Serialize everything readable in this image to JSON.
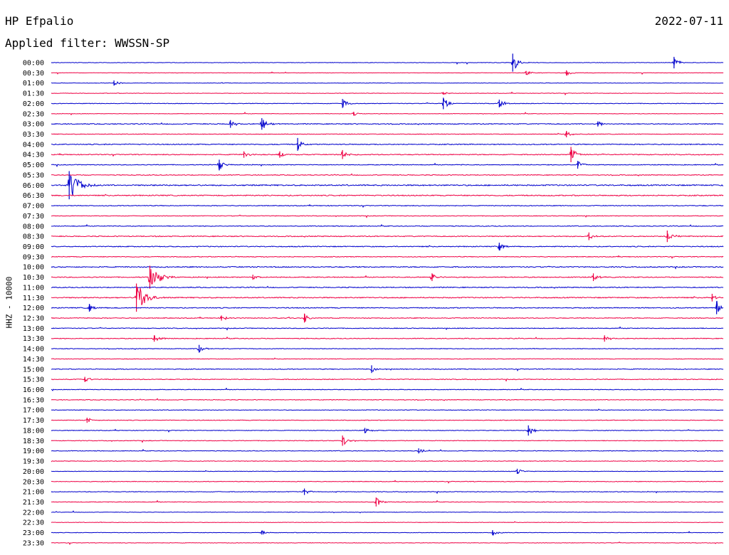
{
  "header": {
    "station": "HP Efpalio",
    "filter": "Applied filter: WWSSN-SP",
    "date": "2022-07-11"
  },
  "colors": {
    "blue": "#0000cc",
    "red": "#ee0044"
  },
  "chart_data": {
    "type": "line",
    "title": "HP Efpalio",
    "ylabel": "HHZ - 10000",
    "grid": false,
    "trace_labels": [
      "00:00",
      "00:30",
      "01:00",
      "01:30",
      "02:00",
      "02:30",
      "03:00",
      "03:30",
      "04:00",
      "04:30",
      "05:00",
      "05:30",
      "06:00",
      "06:30",
      "07:00",
      "07:30",
      "08:00",
      "08:30",
      "09:00",
      "09:30",
      "10:00",
      "10:30",
      "11:00",
      "11:30",
      "12:00",
      "12:30",
      "13:00",
      "13:30",
      "14:00",
      "14:30",
      "15:00",
      "15:30",
      "16:00",
      "16:30",
      "17:00",
      "17:30",
      "18:00",
      "18:30",
      "19:00",
      "19:30",
      "20:00",
      "20:30",
      "21:00",
      "21:30",
      "22:00",
      "22:30",
      "23:00",
      "23:30"
    ],
    "trace_colors": [
      "blue",
      "red",
      "blue",
      "red",
      "blue",
      "red",
      "blue",
      "red",
      "blue",
      "red",
      "blue",
      "red",
      "blue",
      "red",
      "blue",
      "red",
      "blue",
      "red",
      "blue",
      "red",
      "blue",
      "red",
      "blue",
      "red",
      "blue",
      "red",
      "blue",
      "red",
      "blue",
      "red",
      "blue",
      "red",
      "blue",
      "red",
      "blue",
      "red",
      "blue",
      "red",
      "blue",
      "red",
      "blue",
      "red",
      "blue",
      "red",
      "blue",
      "red",
      "blue",
      "red"
    ],
    "noise_level": [
      0.3,
      0.3,
      0.3,
      0.3,
      0.4,
      0.3,
      0.6,
      0.4,
      0.6,
      0.6,
      0.5,
      0.5,
      0.8,
      0.7,
      0.5,
      0.4,
      0.5,
      0.6,
      0.6,
      0.5,
      0.7,
      0.6,
      0.6,
      0.7,
      0.6,
      0.5,
      0.5,
      0.5,
      0.4,
      0.4,
      0.5,
      0.5,
      0.4,
      0.4,
      0.4,
      0.4,
      0.4,
      0.4,
      0.4,
      0.4,
      0.3,
      0.4,
      0.4,
      0.4,
      0.3,
      0.3,
      0.3,
      0.3
    ],
    "events": [
      {
        "trace": "00:00",
        "minute": 20.6,
        "amp": 14
      },
      {
        "trace": "00:00",
        "minute": 27.8,
        "amp": 9
      },
      {
        "trace": "00:30",
        "minute": 21.2,
        "amp": 3
      },
      {
        "trace": "00:30",
        "minute": 23.0,
        "amp": 4
      },
      {
        "trace": "01:00",
        "minute": 2.8,
        "amp": 4
      },
      {
        "trace": "01:30",
        "minute": 17.5,
        "amp": 2
      },
      {
        "trace": "02:00",
        "minute": 13.0,
        "amp": 7
      },
      {
        "trace": "02:00",
        "minute": 17.5,
        "amp": 9
      },
      {
        "trace": "02:00",
        "minute": 20.0,
        "amp": 6
      },
      {
        "trace": "02:30",
        "minute": 13.5,
        "amp": 3
      },
      {
        "trace": "03:00",
        "minute": 8.0,
        "amp": 6
      },
      {
        "trace": "03:00",
        "minute": 9.4,
        "amp": 9
      },
      {
        "trace": "03:00",
        "minute": 24.4,
        "amp": 4
      },
      {
        "trace": "03:30",
        "minute": 23.0,
        "amp": 5
      },
      {
        "trace": "04:00",
        "minute": 11.0,
        "amp": 10
      },
      {
        "trace": "04:30",
        "minute": 8.6,
        "amp": 5
      },
      {
        "trace": "04:30",
        "minute": 10.2,
        "amp": 5
      },
      {
        "trace": "04:30",
        "minute": 13.0,
        "amp": 7
      },
      {
        "trace": "04:30",
        "minute": 23.2,
        "amp": 12
      },
      {
        "trace": "05:00",
        "minute": 7.5,
        "amp": 8
      },
      {
        "trace": "05:00",
        "minute": 23.5,
        "amp": 6
      },
      {
        "trace": "06:00",
        "minute": 0.8,
        "amp": 22
      },
      {
        "trace": "08:30",
        "minute": 24.0,
        "amp": 6
      },
      {
        "trace": "08:30",
        "minute": 27.5,
        "amp": 9
      },
      {
        "trace": "09:00",
        "minute": 20.0,
        "amp": 6
      },
      {
        "trace": "10:30",
        "minute": 4.4,
        "amp": 18
      },
      {
        "trace": "10:30",
        "minute": 9.0,
        "amp": 4
      },
      {
        "trace": "10:30",
        "minute": 17.0,
        "amp": 6
      },
      {
        "trace": "10:30",
        "minute": 24.2,
        "amp": 6
      },
      {
        "trace": "11:30",
        "minute": 3.8,
        "amp": 22
      },
      {
        "trace": "11:30",
        "minute": 29.5,
        "amp": 6
      },
      {
        "trace": "12:00",
        "minute": 1.7,
        "amp": 6
      },
      {
        "trace": "12:00",
        "minute": 29.7,
        "amp": 10
      },
      {
        "trace": "12:30",
        "minute": 7.6,
        "amp": 4
      },
      {
        "trace": "12:30",
        "minute": 11.3,
        "amp": 7
      },
      {
        "trace": "13:30",
        "minute": 4.6,
        "amp": 5
      },
      {
        "trace": "13:30",
        "minute": 24.7,
        "amp": 5
      },
      {
        "trace": "14:00",
        "minute": 6.6,
        "amp": 6
      },
      {
        "trace": "15:00",
        "minute": 14.3,
        "amp": 6
      },
      {
        "trace": "15:30",
        "minute": 1.5,
        "amp": 4
      },
      {
        "trace": "17:30",
        "minute": 1.6,
        "amp": 4
      },
      {
        "trace": "18:00",
        "minute": 14.0,
        "amp": 4
      },
      {
        "trace": "18:00",
        "minute": 21.3,
        "amp": 8
      },
      {
        "trace": "18:30",
        "minute": 13.0,
        "amp": 8
      },
      {
        "trace": "19:00",
        "minute": 16.4,
        "amp": 4
      },
      {
        "trace": "20:00",
        "minute": 20.8,
        "amp": 4
      },
      {
        "trace": "21:00",
        "minute": 11.3,
        "amp": 5
      },
      {
        "trace": "21:30",
        "minute": 14.5,
        "amp": 7
      },
      {
        "trace": "23:00",
        "minute": 9.4,
        "amp": 3
      },
      {
        "trace": "23:00",
        "minute": 19.7,
        "amp": 4
      }
    ]
  }
}
